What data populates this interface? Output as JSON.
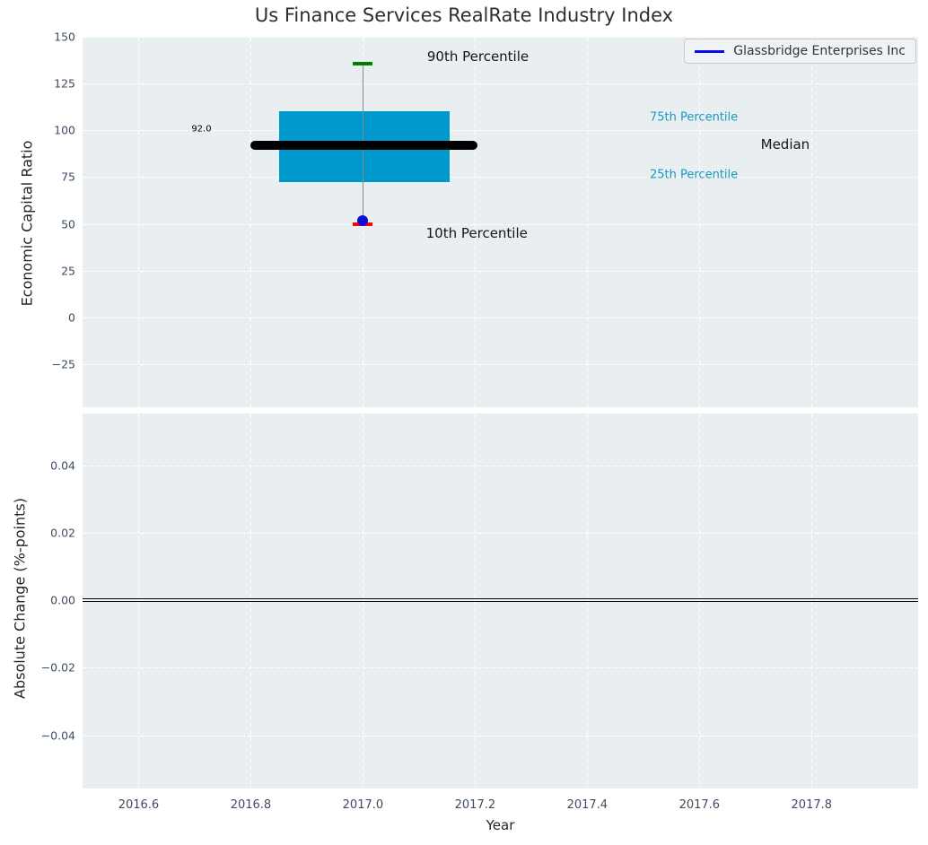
{
  "figure": {
    "title": "Us Finance Services RealRate Industry Index",
    "legend": {
      "label": "Glassbridge Enterprises Inc",
      "line_color": "#0a0af0"
    }
  },
  "colors": {
    "plot_bg": "#e9eef0",
    "grid": "#ffffff",
    "tick_label": "#3d4c63",
    "axis_label": "#262626",
    "title": "#2e2e2e",
    "box_fill": "#0099ce",
    "median_line": "#000000",
    "p90_cap": "#008000",
    "p10_cap": "#fe0000",
    "company_dot": "#0e0ed6",
    "cyan_label": "#1899c8",
    "whisker": "#8a8a8a",
    "zero_line": "#000000"
  },
  "x_axis": {
    "label": "Year",
    "xlim": [
      2016.5,
      2017.99
    ],
    "ticks": [
      {
        "value": 2016.6,
        "label": "2016.6"
      },
      {
        "value": 2016.8,
        "label": "2016.8"
      },
      {
        "value": 2017.0,
        "label": "2017.0"
      },
      {
        "value": 2017.2,
        "label": "2017.2"
      },
      {
        "value": 2017.4,
        "label": "2017.4"
      },
      {
        "value": 2017.6,
        "label": "2017.6"
      },
      {
        "value": 2017.8,
        "label": "2017.8"
      }
    ]
  },
  "chart_data": [
    {
      "type": "box",
      "title": "Us Finance Services RealRate Industry Index",
      "ylabel": "Economic Capital Ratio",
      "ylim": [
        -48,
        150
      ],
      "yticks": [
        {
          "value": 150,
          "label": "150"
        },
        {
          "value": 125,
          "label": "125"
        },
        {
          "value": 100,
          "label": "100"
        },
        {
          "value": 75,
          "label": "75"
        },
        {
          "value": 50,
          "label": "50"
        },
        {
          "value": 25,
          "label": "25"
        },
        {
          "value": 0,
          "label": "0"
        },
        {
          "value": -25,
          "label": "−25"
        }
      ],
      "box": {
        "x": 2017.0,
        "p90": 135.5,
        "q3": 110,
        "median": 92.0,
        "q1": 72.5,
        "p10": 50,
        "box_left": 2016.85,
        "box_right": 2017.155,
        "median_left": 2016.8,
        "median_right": 2017.205
      },
      "company_point": {
        "name": "Glassbridge Enterprises Inc",
        "x": 2017.0,
        "value": 51.5
      },
      "annotations": [
        {
          "text": "90th Percentile",
          "x": 2017.205,
          "y": 139.5,
          "cls": "lg"
        },
        {
          "text": "10th Percentile",
          "x": 2017.203,
          "y": 45.0,
          "cls": "lg"
        },
        {
          "text": "75th Percentile",
          "x": 2017.59,
          "y": 107.0,
          "cls": "cyan"
        },
        {
          "text": "Median",
          "x": 2017.753,
          "y": 92.3,
          "cls": "lg"
        },
        {
          "text": "25th Percentile",
          "x": 2017.59,
          "y": 76.0,
          "cls": "cyan"
        },
        {
          "text": "92.0",
          "x": 2016.712,
          "y": 100.5,
          "cls": "tiny"
        }
      ]
    },
    {
      "type": "line",
      "ylabel": "Absolute Change (%-points)",
      "ylim": [
        -0.0558,
        0.0554
      ],
      "yticks": [
        {
          "value": 0.04,
          "label": "0.04"
        },
        {
          "value": 0.02,
          "label": "0.02"
        },
        {
          "value": 0,
          "label": "0.00"
        },
        {
          "value": -0.02,
          "label": "−0.02"
        },
        {
          "value": -0.04,
          "label": "−0.04"
        }
      ],
      "zero_line": 0.0
    }
  ]
}
